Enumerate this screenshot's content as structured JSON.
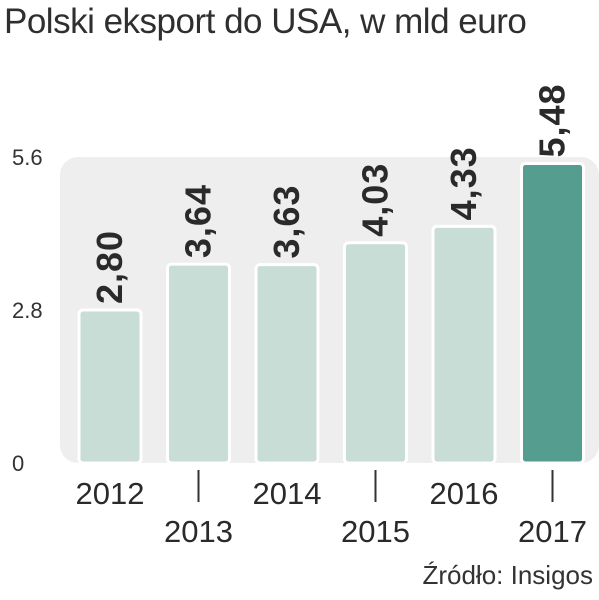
{
  "title": "Polski eksport do USA, w mld euro",
  "source": "Źródło: Insigos",
  "colors": {
    "bar": "#c7ddd6",
    "bar_highlight": "#559d8e",
    "bar_outline": "#ffffff",
    "panel": "#eeeeee"
  },
  "chart_data": {
    "type": "bar",
    "title": "Polski eksport do USA, w mld euro",
    "categories": [
      "2012",
      "2013",
      "2014",
      "2015",
      "2016",
      "2017"
    ],
    "values": [
      2.8,
      3.64,
      3.63,
      4.03,
      4.33,
      5.48
    ],
    "value_labels": [
      "2,80",
      "3,64",
      "3,63",
      "4,03",
      "4,33",
      "5,48"
    ],
    "highlight_index": 5,
    "yticks": [
      "0",
      "2.8",
      "5.6"
    ],
    "ylim": [
      0,
      5.6
    ],
    "grid": false,
    "xlabel": "",
    "ylabel": ""
  }
}
